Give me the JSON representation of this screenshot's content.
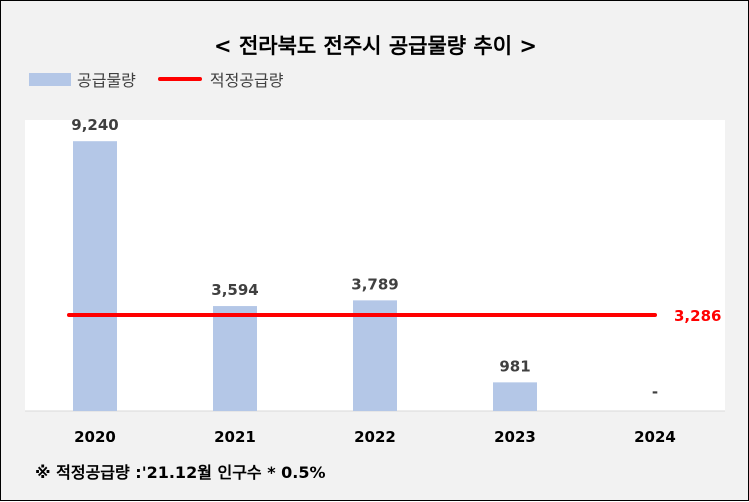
{
  "title": "< 전라북도 전주시 공급물량 추이 >",
  "legend": {
    "bar_label": "공급물량",
    "line_label": "적정공급량"
  },
  "footnote": "※ 적정공급량 :'21.12월 인구수 * 0.5%",
  "colors": {
    "bar": "#b4c7e7",
    "line": "#ff0000",
    "text": "#404040"
  },
  "chart_data": {
    "type": "bar",
    "categories": [
      "2020",
      "2021",
      "2022",
      "2023",
      "2024"
    ],
    "series": [
      {
        "name": "공급물량",
        "values": [
          9240,
          3594,
          3789,
          981,
          0
        ],
        "labels": [
          "9,240",
          "3,594",
          "3,789",
          "981",
          "-"
        ]
      },
      {
        "name": "적정공급량",
        "type": "line",
        "value": 3286,
        "label": "3,286"
      }
    ],
    "ylim": [
      0,
      10000
    ],
    "grid": false,
    "legend_position": "top-left"
  }
}
